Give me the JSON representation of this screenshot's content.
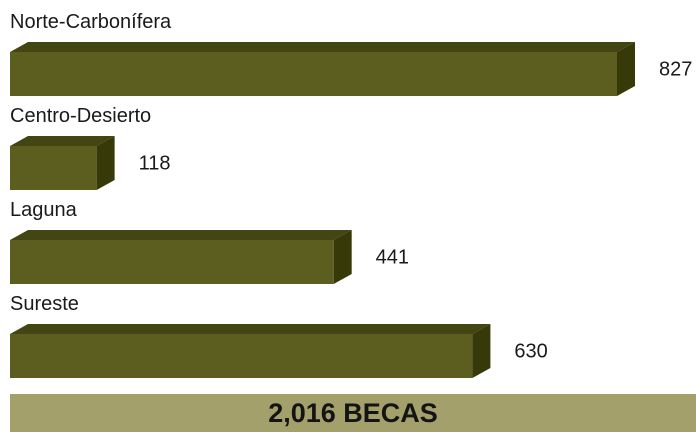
{
  "colors": {
    "bar_front": "#5c5e20",
    "bar_top": "#434512",
    "bar_side": "#373909",
    "banner": "#a4a06b"
  },
  "chart_data": {
    "type": "bar",
    "orientation": "horizontal",
    "style": "3d",
    "categories": [
      "Norte-Carbonífera",
      "Centro-Desierto",
      "Laguna",
      "Sureste"
    ],
    "values": [
      827,
      118,
      441,
      630
    ],
    "title": "",
    "xlabel": "",
    "ylabel": "",
    "grid": false,
    "legend": "none",
    "data_labels": true
  },
  "total": {
    "text": "2,016 BECAS"
  }
}
